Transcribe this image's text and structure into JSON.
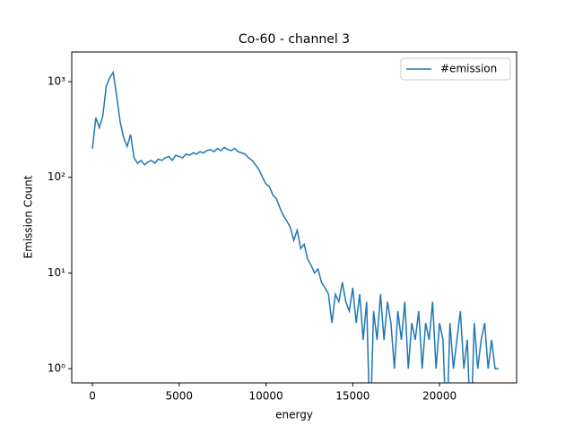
{
  "chart_data": {
    "type": "line",
    "title": "Co-60 - channel 3",
    "xlabel": "energy",
    "ylabel": "Emission Count",
    "yscale": "log",
    "legend": "upper right",
    "x": [
      0,
      200,
      400,
      600,
      800,
      1000,
      1200,
      1400,
      1600,
      1800,
      2000,
      2200,
      2400,
      2600,
      2800,
      3000,
      3200,
      3400,
      3600,
      3800,
      4000,
      4200,
      4400,
      4600,
      4800,
      5000,
      5200,
      5400,
      5600,
      5800,
      6000,
      6200,
      6400,
      6600,
      6800,
      7000,
      7200,
      7400,
      7600,
      7800,
      8000,
      8200,
      8400,
      8600,
      8800,
      9000,
      9200,
      9400,
      9600,
      9800,
      10000,
      10200,
      10400,
      10600,
      10800,
      11000,
      11200,
      11400,
      11600,
      11800,
      12000,
      12200,
      12400,
      12600,
      12800,
      13000,
      13200,
      13400,
      13600,
      13800,
      14000,
      14200,
      14400,
      14600,
      14800,
      15000,
      15200,
      15400,
      15600,
      15800,
      16000,
      16200,
      16400,
      16600,
      16800,
      17000,
      17200,
      17400,
      17600,
      17800,
      18000,
      18200,
      18400,
      18600,
      18800,
      19000,
      19200,
      19400,
      19600,
      19800,
      20000,
      20200,
      20400,
      20600,
      20800,
      21000,
      21200,
      21400,
      21600,
      21800,
      22000,
      22200,
      22400,
      22600,
      22800,
      23000,
      23200,
      23400
    ],
    "series": [
      {
        "name": "#emission",
        "color": "#1f77b4",
        "values": [
          200,
          420,
          330,
          440,
          900,
          1100,
          1250,
          700,
          380,
          260,
          210,
          280,
          160,
          140,
          150,
          135,
          145,
          150,
          140,
          155,
          150,
          160,
          165,
          150,
          170,
          165,
          160,
          175,
          170,
          180,
          175,
          185,
          180,
          190,
          195,
          185,
          200,
          190,
          205,
          195,
          190,
          200,
          185,
          180,
          175,
          160,
          150,
          135,
          120,
          100,
          85,
          80,
          65,
          60,
          48,
          40,
          35,
          30,
          22,
          28,
          18,
          20,
          14,
          12,
          10,
          11,
          8,
          7,
          6,
          3,
          6,
          5,
          8,
          5,
          4,
          7,
          3,
          6,
          2,
          5,
          0,
          4,
          2,
          6,
          2,
          5,
          3,
          1,
          4,
          2,
          5,
          1,
          3,
          2,
          4,
          1,
          3,
          2,
          5,
          1,
          3,
          2,
          0,
          3,
          1,
          2,
          4,
          1,
          2,
          0,
          3,
          1,
          2,
          3,
          1,
          2,
          1,
          1
        ]
      }
    ],
    "xlim": [
      -1190,
      24440
    ],
    "ylim": [
      0.71,
      2040
    ],
    "xticks": [
      0,
      5000,
      10000,
      15000,
      20000
    ],
    "yticks": [
      {
        "value": 1,
        "label": "10⁰"
      },
      {
        "value": 10,
        "label": "10¹"
      },
      {
        "value": 100,
        "label": "10²"
      },
      {
        "value": 1000,
        "label": "10³"
      }
    ]
  }
}
